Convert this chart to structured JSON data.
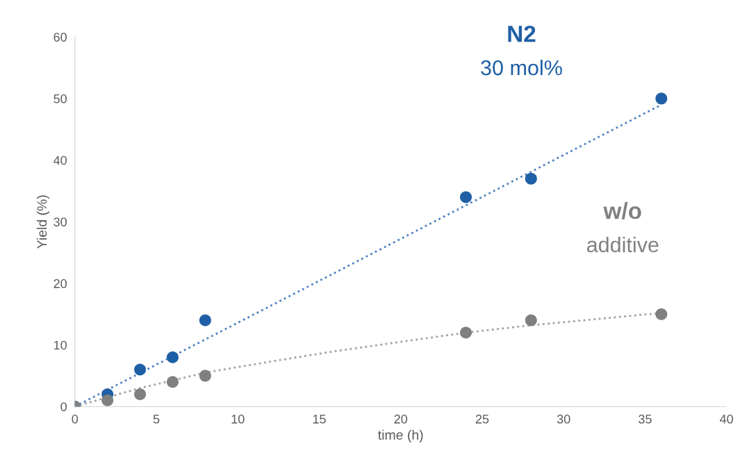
{
  "chart_data": {
    "type": "scatter",
    "xlabel": "time (h)",
    "ylabel": "Yield (%)",
    "xlim": [
      0,
      40
    ],
    "xticks": [
      0,
      5,
      10,
      15,
      20,
      25,
      30,
      35,
      40
    ],
    "ylim": [
      0,
      60
    ],
    "yticks": [
      0,
      10,
      20,
      30,
      40,
      50,
      60
    ],
    "grid": false,
    "legend": false,
    "marker": "circle",
    "series": [
      {
        "name": "N2",
        "color": "#1f5fa6",
        "x": [
          0,
          2,
          4,
          6,
          8,
          24,
          28,
          36
        ],
        "values": [
          0,
          2,
          6,
          8,
          14,
          34,
          37,
          50
        ]
      },
      {
        "name": "w/o",
        "color": "#808080",
        "x": [
          0,
          2,
          4,
          6,
          8,
          24,
          28,
          36
        ],
        "values": [
          0,
          1,
          2,
          4,
          5,
          12,
          14,
          15
        ]
      },
      {
        "type": "line",
        "line_style": "dotted",
        "marker": "none",
        "color": "#4a7fc1",
        "x": [
          0,
          36
        ],
        "values": [
          0,
          49
        ]
      },
      {
        "type": "line",
        "line_style": "dotted",
        "marker": "none",
        "color": "#a0a0a0",
        "x": [
          0,
          4,
          8,
          12,
          16,
          20,
          24,
          28,
          32,
          36
        ],
        "values": [
          0,
          3,
          5.5,
          7.3,
          9,
          10.5,
          12,
          13.2,
          14.2,
          15.2
        ]
      }
    ],
    "annotations": [
      "30 mol%",
      "additive"
    ]
  }
}
